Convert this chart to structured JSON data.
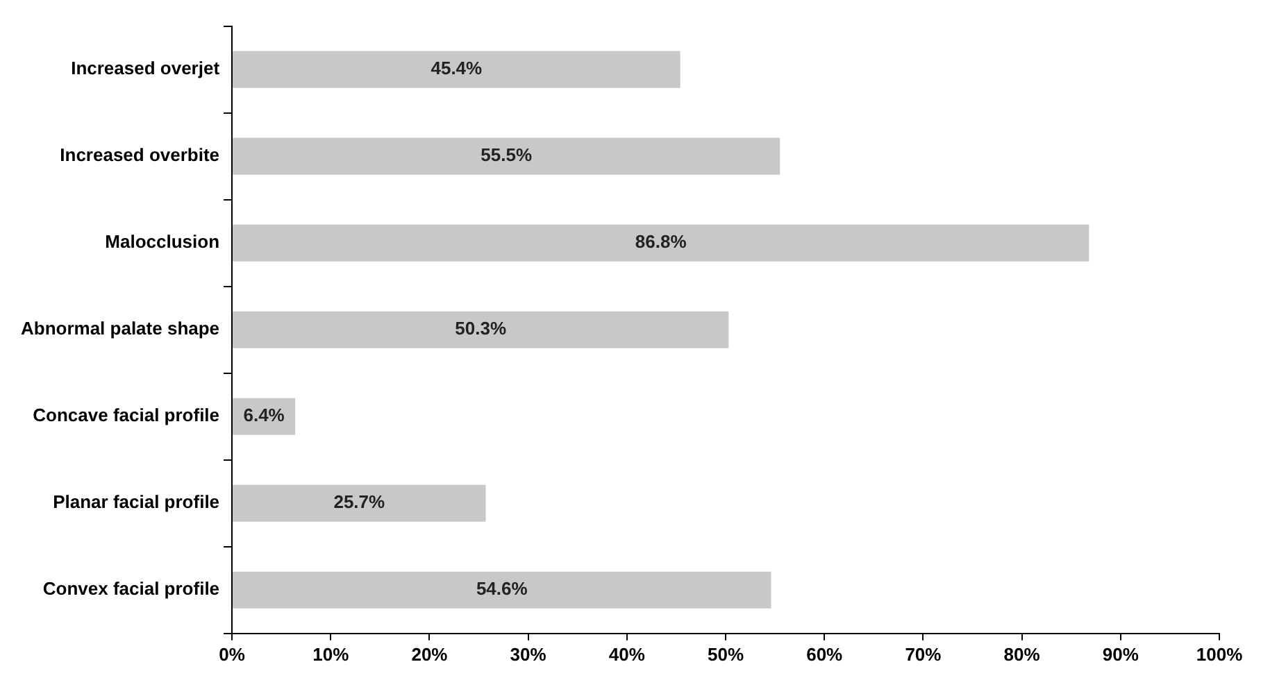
{
  "chart_data": {
    "type": "bar",
    "orientation": "horizontal",
    "categories": [
      "Increased overjet",
      "Increased overbite",
      "Malocclusion",
      "Abnormal palate shape",
      "Concave facial profile",
      "Planar facial profile",
      "Convex facial profile"
    ],
    "values": [
      45.4,
      55.5,
      86.8,
      50.3,
      6.4,
      25.7,
      54.6
    ],
    "value_labels": [
      "45.4%",
      "55.5%",
      "86.8%",
      "50.3%",
      "6.4%",
      "25.7%",
      "54.6%"
    ],
    "color": "#c8c8c8",
    "xlim": [
      0,
      100
    ],
    "xticks": [
      {
        "value": 0,
        "label": "0%"
      },
      {
        "value": 10,
        "label": "10%"
      },
      {
        "value": 20,
        "label": "20%"
      },
      {
        "value": 30,
        "label": "30%"
      },
      {
        "value": 40,
        "label": "40%"
      },
      {
        "value": 50,
        "label": "50%"
      },
      {
        "value": 60,
        "label": "60%"
      },
      {
        "value": 70,
        "label": "70%"
      },
      {
        "value": 80,
        "label": "80%"
      },
      {
        "value": 90,
        "label": "90%"
      },
      {
        "value": 100,
        "label": "100%"
      }
    ],
    "grid": false,
    "legend": false
  }
}
